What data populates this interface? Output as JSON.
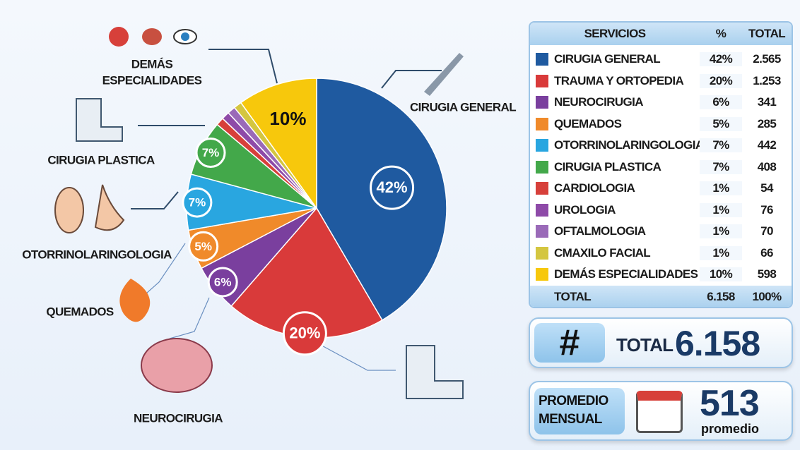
{
  "chart_data": {
    "type": "pie",
    "values": [
      42,
      20,
      6,
      5,
      7,
      7,
      1,
      1,
      1,
      1,
      10
    ],
    "value_labels": [
      "42%",
      "20%",
      "6%",
      "5%",
      "7%",
      "7%",
      null,
      null,
      null,
      null,
      "10%"
    ],
    "colors": [
      "#1f5aa0",
      "#d93a3a",
      "#7a3f9e",
      "#f08a2a",
      "#29a6e0",
      "#43a84a",
      "#d7403a",
      "#8e4aa8",
      "#9a6ab8",
      "#d4c640",
      "#f7c80c"
    ],
    "callouts": {
      "cirugia_general": "CIRUGIA GENERAL",
      "demas": [
        "DEMÁS",
        "ESPECIALIDADES"
      ],
      "cirugia_plastica": "CIRUGIA PLASTICA",
      "otorrino": "OTORRINOLARINGOLOGIA",
      "quemados": "QUEMADOS",
      "neurocirugia": "NEUROCIRUGIA"
    }
  },
  "table": {
    "header": [
      "SERVICIOS",
      "%",
      "TOTAL"
    ],
    "rows": [
      [
        "CIRUGIA GENERAL",
        "42%",
        "2.565"
      ],
      [
        "TRAUMA Y ORTOPEDIA",
        "20%",
        "1.253"
      ],
      [
        "NEUROCIRUGIA",
        "6%",
        "341"
      ],
      [
        "QUEMADOS",
        "5%",
        "285"
      ],
      [
        "OTORRINOLARINGOLOGIA",
        "7%",
        "442"
      ],
      [
        "CIRUGIA PLASTICA",
        "7%",
        "408"
      ],
      [
        "CARDIOLOGIA",
        "1%",
        "54"
      ],
      [
        "UROLOGIA",
        "1%",
        "76"
      ],
      [
        "OFTALMOLOGIA",
        "1%",
        "70"
      ],
      [
        "CMAXILO FACIAL",
        "1%",
        "66"
      ],
      [
        "DEMÁS ESPECIALIDADES",
        "10%",
        "598"
      ]
    ],
    "footer": [
      "TOTAL",
      "6.158",
      "100%"
    ]
  },
  "summary": {
    "icon": "#",
    "total_label": "TOTAL",
    "total_value": "6.158",
    "average_label": [
      "PROMEDIO",
      "MENSUAL"
    ],
    "average_value": "513",
    "average_unit": "promedio"
  }
}
